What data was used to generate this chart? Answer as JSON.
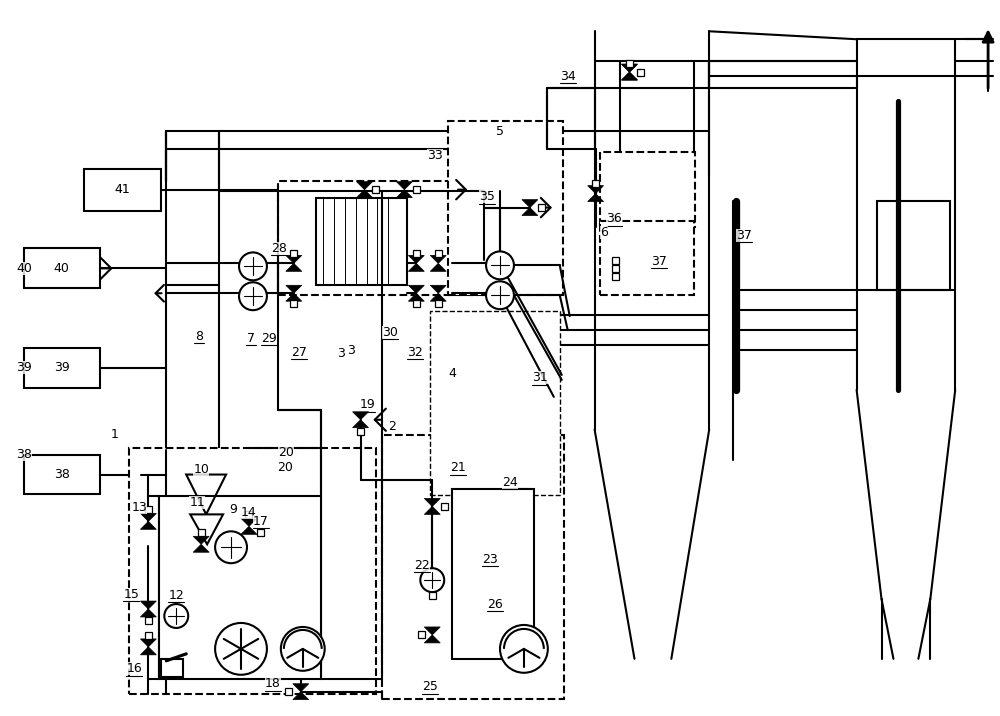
{
  "bg": "#ffffff",
  "lw": 1.5
}
